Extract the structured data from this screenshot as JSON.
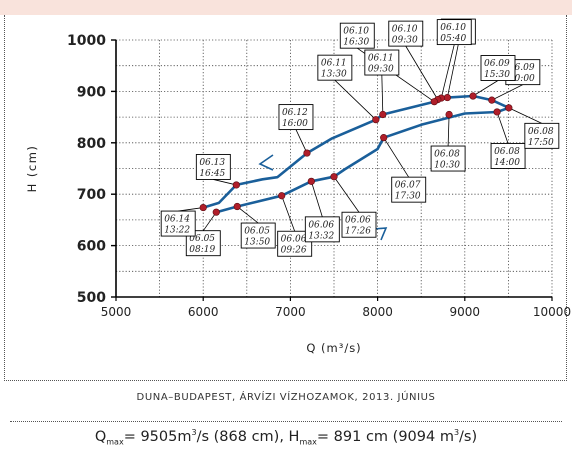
{
  "chart_data": {
    "type": "line",
    "title": "",
    "xlabel": "Q (m³/s)",
    "ylabel": "H (cm)",
    "xlim": [
      5000,
      10000
    ],
    "ylim": [
      500,
      1000
    ],
    "x_ticks": [
      "5000",
      "6000",
      "7000",
      "8000",
      "9000",
      "10000"
    ],
    "y_ticks": [
      "500",
      "600",
      "700",
      "800",
      "900",
      "1000"
    ],
    "grid": true,
    "series": [
      {
        "name": "",
        "points": [
          {
            "x": 6150,
            "y": 665
          },
          {
            "x": 6390,
            "y": 676
          },
          {
            "x": 6900,
            "y": 697
          },
          {
            "x": 7240,
            "y": 725
          },
          {
            "x": 7500,
            "y": 734
          },
          {
            "x": 7620,
            "y": 748
          },
          {
            "x": 8000,
            "y": 788
          },
          {
            "x": 8070,
            "y": 810
          },
          {
            "x": 8500,
            "y": 835
          },
          {
            "x": 9000,
            "y": 857
          },
          {
            "x": 9370,
            "y": 860
          },
          {
            "x": 9505,
            "y": 868
          },
          {
            "x": 9310,
            "y": 883
          },
          {
            "x": 9094,
            "y": 891
          },
          {
            "x": 8800,
            "y": 888
          },
          {
            "x": 8730,
            "y": 887
          },
          {
            "x": 8650,
            "y": 880
          },
          {
            "x": 8060,
            "y": 855
          },
          {
            "x": 7980,
            "y": 845
          },
          {
            "x": 7470,
            "y": 808
          },
          {
            "x": 7190,
            "y": 780
          },
          {
            "x": 6850,
            "y": 733
          },
          {
            "x": 6680,
            "y": 729
          },
          {
            "x": 6380,
            "y": 718
          },
          {
            "x": 6180,
            "y": 683
          },
          {
            "x": 6000,
            "y": 674
          }
        ]
      }
    ],
    "annotations": [
      {
        "date": "06.05",
        "time": "08:19",
        "x": 6150,
        "y": 665
      },
      {
        "date": "06.05",
        "time": "13:50",
        "x": 6390,
        "y": 676
      },
      {
        "date": "06.06",
        "time": "09:26",
        "x": 6900,
        "y": 697
      },
      {
        "date": "06.06",
        "time": "13:32",
        "x": 7240,
        "y": 725
      },
      {
        "date": "06.06",
        "time": "17:26",
        "x": 7500,
        "y": 734
      },
      {
        "date": "06.07",
        "time": "17:30",
        "x": 8070,
        "y": 810
      },
      {
        "date": "06.08",
        "time": "10:30",
        "x": 8820,
        "y": 855
      },
      {
        "date": "06.08",
        "time": "14:00",
        "x": 9370,
        "y": 860
      },
      {
        "date": "06.08",
        "time": "17:50",
        "x": 9505,
        "y": 868
      },
      {
        "date": "06.09",
        "time": "10:00",
        "x": 9310,
        "y": 883
      },
      {
        "date": "06.09",
        "time": "15:30",
        "x": 9094,
        "y": 891
      },
      {
        "date": "06.09",
        "time": "19:50",
        "x": 8800,
        "y": 888
      },
      {
        "date": "06.10",
        "time": "05:40",
        "x": 8730,
        "y": 887
      },
      {
        "date": "06.10",
        "time": "09:30",
        "x": 8690,
        "y": 884
      },
      {
        "date": "06.10",
        "time": "16:30",
        "x": 8650,
        "y": 880
      },
      {
        "date": "06.11",
        "time": "09:30",
        "x": 8060,
        "y": 855
      },
      {
        "date": "06.11",
        "time": "13:30",
        "x": 7980,
        "y": 845
      },
      {
        "date": "06.12",
        "time": "16:00",
        "x": 7190,
        "y": 780
      },
      {
        "date": "06.13",
        "time": "16:45",
        "x": 6380,
        "y": 718
      },
      {
        "date": "06.14",
        "time": "13:22",
        "x": 6000,
        "y": 674
      }
    ],
    "highlight_color": "#b01e2a",
    "line_color": "#1a5f9a"
  },
  "caption": "DUNA–BUDAPEST, ÁRVÍZI VÍZHOZAMOK, 2013. JÚNIUS",
  "formula": {
    "q_symbol": "Q",
    "q_sub": "max",
    "q_value": "= 9505m",
    "q_exp": "3",
    "q_rest": "/s (868 cm), H",
    "h_sub": "max",
    "h_value": "= 891 cm (9094 m",
    "h_exp": "3",
    "h_rest": "/s)"
  }
}
